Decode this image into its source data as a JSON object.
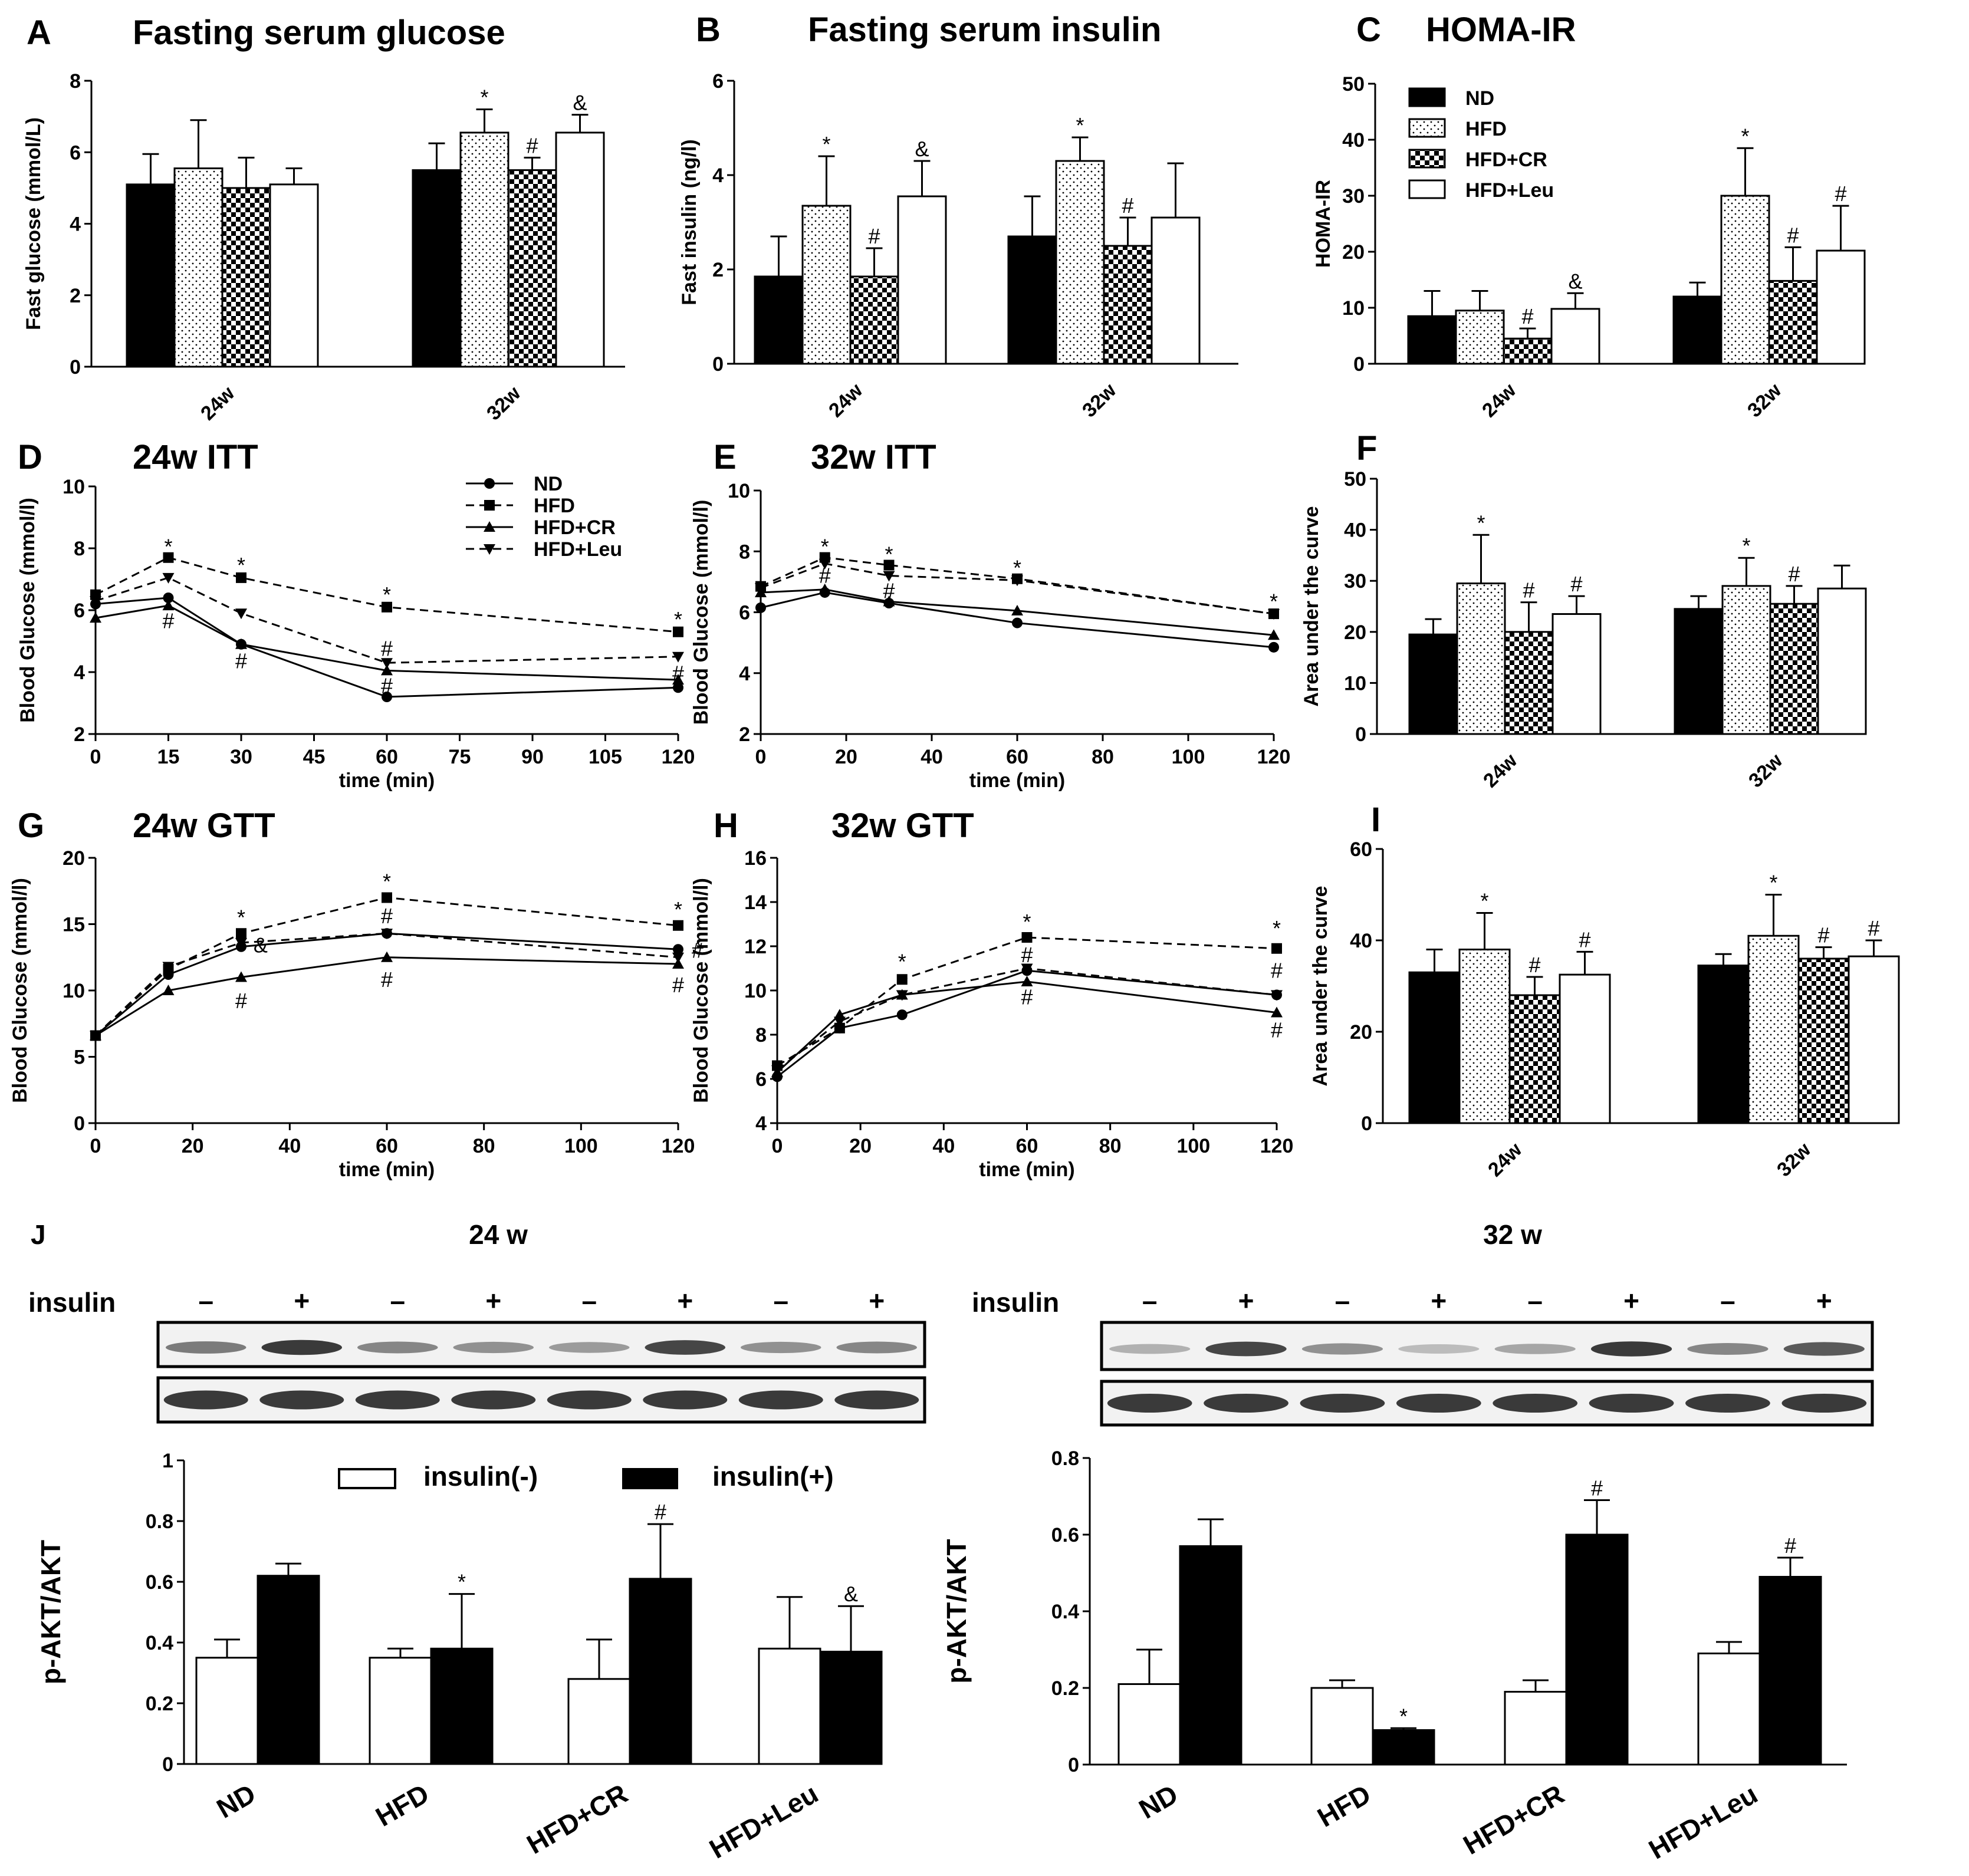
{
  "colors": {
    "ink": "#000000",
    "paper": "#ffffff",
    "blot_bg": "#f2f2f2",
    "blot_band": "#1a1a1a"
  },
  "groups": [
    "ND",
    "HFD",
    "HFD+CR",
    "HFD+Leu"
  ],
  "group_fills": [
    "solid",
    "dots",
    "checker",
    "open"
  ],
  "line_styles": [
    {
      "name": "ND",
      "marker": "circle",
      "dash": "solid"
    },
    {
      "name": "HFD",
      "marker": "square",
      "dash": "dashed"
    },
    {
      "name": "HFD+CR",
      "marker": "triangle",
      "dash": "solid"
    },
    {
      "name": "HFD+Leu",
      "marker": "triangle-down",
      "dash": "dashed"
    }
  ],
  "chart_data": [
    {
      "panel": "A",
      "type": "bar",
      "title": "Fasting serum glucose",
      "ylabel": "Fast glucose (mmol/L)",
      "categories": [
        "24w",
        "32w"
      ],
      "ylim": [
        0,
        8
      ],
      "yticks": [
        0,
        2,
        4,
        6,
        8
      ],
      "series": [
        {
          "name": "ND",
          "values": [
            5.1,
            5.5
          ],
          "errors": [
            0.85,
            0.75
          ],
          "annotations": [
            "",
            ""
          ]
        },
        {
          "name": "HFD",
          "values": [
            5.55,
            6.55
          ],
          "errors": [
            1.35,
            0.65
          ],
          "annotations": [
            "",
            "*"
          ]
        },
        {
          "name": "HFD+CR",
          "values": [
            5.0,
            5.5
          ],
          "errors": [
            0.85,
            0.35
          ],
          "annotations": [
            "",
            "#"
          ]
        },
        {
          "name": "HFD+Leu",
          "values": [
            5.1,
            6.55
          ],
          "errors": [
            0.45,
            0.5
          ],
          "annotations": [
            "",
            "&"
          ]
        }
      ]
    },
    {
      "panel": "B",
      "type": "bar",
      "title": "Fasting serum insulin",
      "ylabel": "Fast insulin (ng/l)",
      "categories": [
        "24w",
        "32w"
      ],
      "ylim": [
        0,
        6
      ],
      "yticks": [
        0,
        2,
        4,
        6
      ],
      "series": [
        {
          "name": "ND",
          "values": [
            1.85,
            2.7
          ],
          "errors": [
            0.85,
            0.85
          ],
          "annotations": [
            "",
            ""
          ]
        },
        {
          "name": "HFD",
          "values": [
            3.35,
            4.3
          ],
          "errors": [
            1.05,
            0.5
          ],
          "annotations": [
            "*",
            "*"
          ]
        },
        {
          "name": "HFD+CR",
          "values": [
            1.85,
            2.5
          ],
          "errors": [
            0.6,
            0.6
          ],
          "annotations": [
            "#",
            "#"
          ]
        },
        {
          "name": "HFD+Leu",
          "values": [
            3.55,
            3.1
          ],
          "errors": [
            0.75,
            1.15
          ],
          "annotations": [
            "&",
            ""
          ]
        }
      ]
    },
    {
      "panel": "C",
      "type": "bar",
      "title": "HOMA-IR",
      "ylabel": "HOMA-IR",
      "categories": [
        "24w",
        "32w"
      ],
      "ylim": [
        0,
        50
      ],
      "yticks": [
        0,
        10,
        20,
        30,
        40,
        50
      ],
      "legend": [
        "ND",
        "HFD",
        "HFD+CR",
        "HFD+Leu"
      ],
      "series": [
        {
          "name": "ND",
          "values": [
            8.5,
            12.0
          ],
          "errors": [
            4.5,
            2.5
          ],
          "annotations": [
            "",
            ""
          ]
        },
        {
          "name": "HFD",
          "values": [
            9.5,
            30.0
          ],
          "errors": [
            3.5,
            8.5
          ],
          "annotations": [
            "",
            "*"
          ]
        },
        {
          "name": "HFD+CR",
          "values": [
            4.5,
            14.8
          ],
          "errors": [
            1.8,
            6.0
          ],
          "annotations": [
            "#",
            "#"
          ]
        },
        {
          "name": "HFD+Leu",
          "values": [
            9.8,
            20.2
          ],
          "errors": [
            2.8,
            8.0
          ],
          "annotations": [
            "&",
            "#"
          ]
        }
      ]
    },
    {
      "panel": "D",
      "type": "line",
      "title": "24w  ITT",
      "ylabel": "Blood Glucose (mmol/l)",
      "xlabel": "time (min)",
      "x": [
        0,
        15,
        30,
        60,
        120
      ],
      "xlim": [
        0,
        120
      ],
      "xticks": [
        0,
        15,
        30,
        45,
        60,
        75,
        90,
        105,
        120
      ],
      "ylim": [
        2,
        10
      ],
      "yticks": [
        2,
        4,
        6,
        8,
        10
      ],
      "legend": [
        "ND",
        "HFD",
        "HFD+CR",
        "HFD+Leu"
      ],
      "series": [
        {
          "name": "ND",
          "values": [
            6.2,
            6.4,
            4.9,
            3.2,
            3.5
          ]
        },
        {
          "name": "HFD",
          "values": [
            6.5,
            7.7,
            7.05,
            6.1,
            5.3
          ]
        },
        {
          "name": "HFD+CR",
          "values": [
            5.75,
            6.15,
            4.9,
            4.05,
            3.75
          ]
        },
        {
          "name": "HFD+Leu",
          "values": [
            6.3,
            7.05,
            5.9,
            4.3,
            4.5
          ]
        }
      ],
      "annotations": [
        {
          "x": 15,
          "y": 8.05,
          "text": "*"
        },
        {
          "x": 15,
          "y": 5.65,
          "text": "#"
        },
        {
          "x": 30,
          "y": 7.45,
          "text": "*"
        },
        {
          "x": 30,
          "y": 4.35,
          "text": "#"
        },
        {
          "x": 60,
          "y": 6.5,
          "text": "*"
        },
        {
          "x": 60,
          "y": 4.75,
          "text": "#"
        },
        {
          "x": 60,
          "y": 3.55,
          "text": "#"
        },
        {
          "x": 120,
          "y": 5.7,
          "text": "*"
        },
        {
          "x": 120,
          "y": 3.95,
          "text": "#"
        }
      ]
    },
    {
      "panel": "E",
      "type": "line",
      "title": "32w    ITT",
      "ylabel": "Blood Glucose (mmol/l)",
      "xlabel": "time (min)",
      "x": [
        0,
        15,
        30,
        60,
        120
      ],
      "xlim": [
        0,
        120
      ],
      "xticks": [
        0,
        20,
        40,
        60,
        80,
        100,
        120
      ],
      "ylim": [
        2,
        10
      ],
      "yticks": [
        2,
        4,
        6,
        8,
        10
      ],
      "series": [
        {
          "name": "ND",
          "values": [
            6.15,
            6.65,
            6.3,
            5.65,
            4.85
          ]
        },
        {
          "name": "HFD",
          "values": [
            6.85,
            7.8,
            7.55,
            7.1,
            5.95
          ]
        },
        {
          "name": "HFD+CR",
          "values": [
            6.65,
            6.75,
            6.35,
            6.05,
            5.25
          ]
        },
        {
          "name": "HFD+Leu",
          "values": [
            6.8,
            7.6,
            7.2,
            7.05,
            5.95
          ]
        }
      ],
      "annotations": [
        {
          "x": 15,
          "y": 8.15,
          "text": "*"
        },
        {
          "x": 15,
          "y": 7.2,
          "text": "#"
        },
        {
          "x": 30,
          "y": 7.9,
          "text": "*"
        },
        {
          "x": 30,
          "y": 6.7,
          "text": "#"
        },
        {
          "x": 60,
          "y": 7.45,
          "text": "*"
        },
        {
          "x": 120,
          "y": 6.35,
          "text": "*"
        }
      ]
    },
    {
      "panel": "F",
      "type": "bar",
      "title": "",
      "ylabel": "Area under the curve",
      "categories": [
        "24w",
        "32w"
      ],
      "ylim": [
        0,
        50
      ],
      "yticks": [
        0,
        10,
        20,
        30,
        40,
        50
      ],
      "series": [
        {
          "name": "ND",
          "values": [
            19.5,
            24.5
          ],
          "errors": [
            3.0,
            2.5
          ],
          "annotations": [
            "",
            ""
          ]
        },
        {
          "name": "HFD",
          "values": [
            29.5,
            29.0
          ],
          "errors": [
            9.5,
            5.5
          ],
          "annotations": [
            "*",
            "*"
          ]
        },
        {
          "name": "HFD+CR",
          "values": [
            20.0,
            25.5
          ],
          "errors": [
            5.8,
            3.5
          ],
          "annotations": [
            "#",
            "#"
          ]
        },
        {
          "name": "HFD+Leu",
          "values": [
            23.5,
            28.5
          ],
          "errors": [
            3.5,
            4.5
          ],
          "annotations": [
            "#",
            ""
          ]
        }
      ]
    },
    {
      "panel": "G",
      "type": "line",
      "title": "24w   GTT",
      "ylabel": "Blood Glucose (mmol/l)",
      "xlabel": "time (min)",
      "x": [
        0,
        15,
        30,
        60,
        120
      ],
      "xlim": [
        0,
        120
      ],
      "xticks": [
        0,
        20,
        40,
        60,
        80,
        100,
        120
      ],
      "ylim": [
        0,
        20
      ],
      "yticks": [
        0,
        5,
        10,
        15,
        20
      ],
      "series": [
        {
          "name": "ND",
          "values": [
            6.6,
            11.2,
            13.3,
            14.3,
            13.1
          ]
        },
        {
          "name": "HFD",
          "values": [
            6.6,
            11.6,
            14.3,
            17.0,
            14.9
          ]
        },
        {
          "name": "HFD+CR",
          "values": [
            6.6,
            10.0,
            11.0,
            12.5,
            12.0
          ]
        },
        {
          "name": "HFD+Leu",
          "values": [
            6.6,
            11.8,
            13.6,
            14.3,
            12.5
          ]
        }
      ],
      "annotations": [
        {
          "x": 30,
          "y": 15.5,
          "text": "*"
        },
        {
          "x": 30,
          "y": 9.2,
          "text": "#"
        },
        {
          "x": 34,
          "y": 13.4,
          "text": "&"
        },
        {
          "x": 60,
          "y": 18.2,
          "text": "*"
        },
        {
          "x": 60,
          "y": 15.6,
          "text": "#"
        },
        {
          "x": 60,
          "y": 10.8,
          "text": "#"
        },
        {
          "x": 120,
          "y": 16.1,
          "text": "*"
        },
        {
          "x": 124,
          "y": 13.0,
          "text": "#"
        },
        {
          "x": 120,
          "y": 10.4,
          "text": "#"
        }
      ]
    },
    {
      "panel": "H",
      "type": "line",
      "title": "32w   GTT",
      "ylabel": "Blood Glucose (mmol/l)",
      "xlabel": "time (min)",
      "x": [
        0,
        15,
        30,
        60,
        120
      ],
      "xlim": [
        0,
        120
      ],
      "xticks": [
        0,
        20,
        40,
        60,
        80,
        100,
        120
      ],
      "ylim": [
        4,
        16
      ],
      "yticks": [
        4,
        6,
        8,
        10,
        12,
        14,
        16
      ],
      "series": [
        {
          "name": "ND",
          "values": [
            6.1,
            8.3,
            8.9,
            10.9,
            9.8
          ]
        },
        {
          "name": "HFD",
          "values": [
            6.6,
            8.3,
            10.5,
            12.4,
            11.9
          ]
        },
        {
          "name": "HFD+CR",
          "values": [
            6.3,
            8.9,
            9.8,
            10.4,
            9.0
          ]
        },
        {
          "name": "HFD+Leu",
          "values": [
            6.4,
            8.6,
            9.8,
            11.0,
            9.8
          ]
        }
      ],
      "annotations": [
        {
          "x": 30,
          "y": 11.3,
          "text": "*"
        },
        {
          "x": 60,
          "y": 13.1,
          "text": "*"
        },
        {
          "x": 60,
          "y": 11.6,
          "text": "#"
        },
        {
          "x": 60,
          "y": 9.7,
          "text": "#"
        },
        {
          "x": 120,
          "y": 12.8,
          "text": "*"
        },
        {
          "x": 120,
          "y": 10.9,
          "text": "#"
        },
        {
          "x": 120,
          "y": 8.2,
          "text": "#"
        }
      ]
    },
    {
      "panel": "I",
      "type": "bar",
      "title": "",
      "ylabel": "Area under the curve",
      "categories": [
        "24w",
        "32w"
      ],
      "ylim": [
        0,
        60
      ],
      "yticks": [
        0,
        20,
        40,
        60
      ],
      "series": [
        {
          "name": "ND",
          "values": [
            33.0,
            34.5
          ],
          "errors": [
            5.0,
            2.5
          ],
          "annotations": [
            "",
            ""
          ]
        },
        {
          "name": "HFD",
          "values": [
            38.0,
            41.0
          ],
          "errors": [
            8.0,
            9.0
          ],
          "annotations": [
            "*",
            "*"
          ]
        },
        {
          "name": "HFD+CR",
          "values": [
            28.0,
            36.0
          ],
          "errors": [
            4.0,
            2.5
          ],
          "annotations": [
            "#",
            "#"
          ]
        },
        {
          "name": "HFD+Leu",
          "values": [
            32.5,
            36.5
          ],
          "errors": [
            5.0,
            3.5
          ],
          "annotations": [
            "#",
            "#"
          ]
        }
      ]
    },
    {
      "panel": "J-24w",
      "type": "bar",
      "title": "24 w",
      "ylabel": "p-AKT/AKT",
      "categories": [
        "ND",
        "HFD",
        "HFD+CR",
        "HFD+Leu"
      ],
      "ylim": [
        0,
        1.0
      ],
      "yticks": [
        0.0,
        0.2,
        0.4,
        0.6,
        0.8,
        1.0
      ],
      "legend": [
        "insulin(-)",
        "insulin(+)"
      ],
      "series": [
        {
          "name": "insulin(-)",
          "values": [
            0.35,
            0.35,
            0.28,
            0.38
          ],
          "errors": [
            0.06,
            0.03,
            0.13,
            0.17
          ],
          "annotations": [
            "",
            "",
            "",
            ""
          ]
        },
        {
          "name": "insulin(+)",
          "values": [
            0.62,
            0.38,
            0.61,
            0.37
          ],
          "errors": [
            0.04,
            0.18,
            0.18,
            0.15
          ],
          "annotations": [
            "",
            "*",
            "#",
            "&"
          ]
        }
      ]
    },
    {
      "panel": "J-32w",
      "type": "bar",
      "title": "32 w",
      "ylabel": "p-AKT/AKT",
      "categories": [
        "ND",
        "HFD",
        "HFD+CR",
        "HFD+Leu"
      ],
      "ylim": [
        0,
        0.8
      ],
      "yticks": [
        0.0,
        0.2,
        0.4,
        0.6,
        0.8
      ],
      "series": [
        {
          "name": "insulin(-)",
          "values": [
            0.21,
            0.2,
            0.19,
            0.29
          ],
          "errors": [
            0.09,
            0.02,
            0.03,
            0.03
          ],
          "annotations": [
            "",
            "",
            "",
            ""
          ]
        },
        {
          "name": "insulin(+)",
          "values": [
            0.57,
            0.09,
            0.6,
            0.49
          ],
          "errors": [
            0.07,
            0.005,
            0.09,
            0.05
          ],
          "annotations": [
            "",
            "*",
            "#",
            "#"
          ]
        }
      ]
    }
  ],
  "blots": {
    "panel_letter": "J",
    "insulin_label": "insulin",
    "signs": [
      "–",
      "+",
      "–",
      "+",
      "–",
      "+",
      "–",
      "+"
    ],
    "blot_24w": {
      "title": "24 w",
      "top_band_intensity": [
        0.55,
        0.85,
        0.5,
        0.45,
        0.4,
        0.8,
        0.45,
        0.5
      ],
      "bottom_band_intensity": [
        0.85,
        0.85,
        0.85,
        0.85,
        0.85,
        0.85,
        0.85,
        0.85
      ]
    },
    "blot_32w": {
      "title": "32 w",
      "top_band_intensity": [
        0.3,
        0.8,
        0.45,
        0.25,
        0.35,
        0.85,
        0.5,
        0.7
      ],
      "bottom_band_intensity": [
        0.85,
        0.85,
        0.85,
        0.85,
        0.85,
        0.85,
        0.85,
        0.85
      ]
    }
  }
}
